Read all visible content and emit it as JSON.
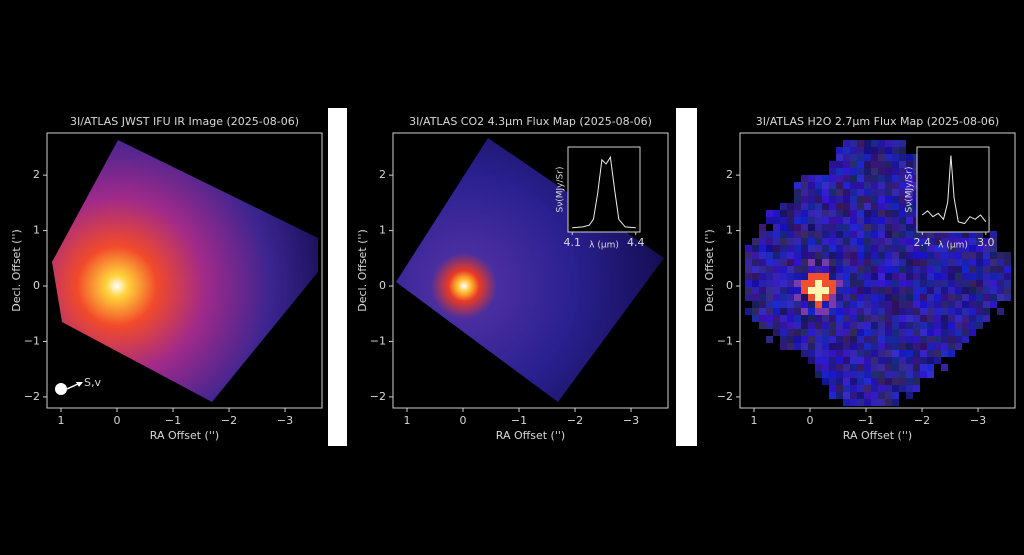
{
  "chart_data": [
    {
      "type": "image",
      "title": "3I/ATLAS JWST IFU IR Image (2025-08-06)",
      "xlabel": "RA Offset ('')",
      "ylabel": "Decl. Offset ('')",
      "xlim": [
        1.25,
        -3.66
      ],
      "ylim": [
        -2.2,
        2.76
      ],
      "xticks": [
        1,
        0,
        {
          "value": -1,
          "label": "−1"
        },
        {
          "value": -2,
          "label": "−2"
        },
        {
          "value": -3,
          "label": "−3"
        }
      ],
      "yticks": [
        {
          "value": -2,
          "label": "−2"
        },
        {
          "value": -1,
          "label": "−1"
        },
        0,
        1,
        2
      ],
      "annotation": "S,v"
    },
    {
      "type": "image",
      "title": "3I/ATLAS CO2 4.3µm Flux Map (2025-08-06)",
      "xlabel": "RA Offset ('')",
      "ylabel": "Decl. Offset ('')",
      "xlim": [
        1.25,
        -3.66
      ],
      "ylim": [
        -2.2,
        2.76
      ],
      "xticks": [
        1,
        0,
        {
          "value": -1,
          "label": "−1"
        },
        {
          "value": -2,
          "label": "−2"
        },
        {
          "value": -3,
          "label": "−3"
        }
      ],
      "yticks": [
        {
          "value": -2,
          "label": "−2"
        },
        {
          "value": -1,
          "label": "−1"
        },
        0,
        1,
        2
      ],
      "inset": {
        "type": "line",
        "xlabel": "λ (µm)",
        "ylabel": "Sν(MJy/Sr)",
        "xlim": [
          4.08,
          4.42
        ],
        "ylim": [
          0,
          1
        ],
        "xticks": [
          4.1,
          4.4
        ],
        "x": [
          4.1,
          4.15,
          4.18,
          4.2,
          4.22,
          4.24,
          4.26,
          4.28,
          4.3,
          4.32,
          4.35,
          4.4
        ],
        "values": [
          0.05,
          0.06,
          0.08,
          0.15,
          0.45,
          0.85,
          0.8,
          0.88,
          0.5,
          0.15,
          0.06,
          0.05
        ]
      }
    },
    {
      "type": "image",
      "title": "3I/ATLAS H2O 2.7µm Flux Map (2025-08-06)",
      "xlabel": "RA Offset ('')",
      "ylabel": "Decl. Offset ('')",
      "xlim": [
        1.25,
        -3.66
      ],
      "ylim": [
        -2.2,
        2.76
      ],
      "xticks": [
        1,
        0,
        {
          "value": -1,
          "label": "−1"
        },
        {
          "value": -2,
          "label": "−2"
        },
        {
          "value": -3,
          "label": "−3"
        }
      ],
      "yticks": [
        {
          "value": -2,
          "label": "−2"
        },
        {
          "value": -1,
          "label": "−1"
        },
        0,
        1,
        2
      ],
      "inset": {
        "type": "line",
        "xlabel": "λ (µm)",
        "ylabel": "Sν(MJy/Sr)",
        "xlim": [
          2.35,
          3.03
        ],
        "ylim": [
          0,
          1
        ],
        "xticks": [
          2.4,
          {
            "value": 3,
            "label": "3.0"
          }
        ],
        "x": [
          2.4,
          2.45,
          2.5,
          2.55,
          2.6,
          2.64,
          2.67,
          2.7,
          2.74,
          2.8,
          2.85,
          2.9,
          2.95,
          3.0
        ],
        "values": [
          0.2,
          0.25,
          0.18,
          0.22,
          0.15,
          0.35,
          0.9,
          0.4,
          0.12,
          0.1,
          0.18,
          0.15,
          0.2,
          0.12
        ]
      }
    }
  ]
}
